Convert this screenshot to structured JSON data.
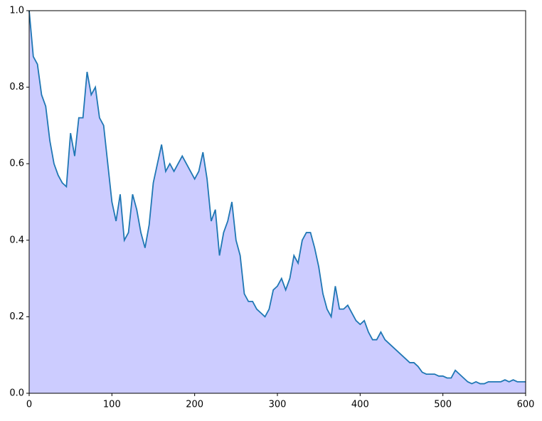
{
  "chart_data": {
    "type": "area",
    "x": [
      0,
      5,
      10,
      15,
      20,
      25,
      30,
      35,
      40,
      45,
      50,
      55,
      60,
      65,
      70,
      75,
      80,
      85,
      90,
      95,
      100,
      105,
      110,
      115,
      120,
      125,
      130,
      135,
      140,
      145,
      150,
      155,
      160,
      165,
      170,
      175,
      180,
      185,
      190,
      195,
      200,
      205,
      210,
      215,
      220,
      225,
      230,
      235,
      240,
      245,
      250,
      255,
      260,
      265,
      270,
      275,
      280,
      285,
      290,
      295,
      300,
      305,
      310,
      315,
      320,
      325,
      330,
      335,
      340,
      345,
      350,
      355,
      360,
      365,
      370,
      375,
      380,
      385,
      390,
      395,
      400,
      405,
      410,
      415,
      420,
      425,
      430,
      435,
      440,
      445,
      450,
      455,
      460,
      465,
      470,
      475,
      480,
      485,
      490,
      495,
      500,
      505,
      510,
      515,
      520,
      525,
      530,
      535,
      540,
      545,
      550,
      555,
      560,
      565,
      570,
      575,
      580,
      585,
      590,
      595,
      600
    ],
    "series": [
      {
        "color": "#1f77b4",
        "fill": "#ccccff",
        "values": [
          1.0,
          0.88,
          0.86,
          0.78,
          0.75,
          0.66,
          0.6,
          0.57,
          0.55,
          0.54,
          0.68,
          0.62,
          0.72,
          0.72,
          0.84,
          0.78,
          0.8,
          0.72,
          0.7,
          0.6,
          0.5,
          0.45,
          0.52,
          0.4,
          0.42,
          0.52,
          0.48,
          0.42,
          0.38,
          0.44,
          0.55,
          0.6,
          0.65,
          0.58,
          0.6,
          0.58,
          0.6,
          0.62,
          0.6,
          0.58,
          0.56,
          0.58,
          0.63,
          0.56,
          0.45,
          0.48,
          0.36,
          0.42,
          0.45,
          0.5,
          0.4,
          0.36,
          0.26,
          0.24,
          0.24,
          0.22,
          0.21,
          0.2,
          0.22,
          0.27,
          0.28,
          0.3,
          0.27,
          0.3,
          0.36,
          0.34,
          0.4,
          0.42,
          0.42,
          0.38,
          0.33,
          0.26,
          0.22,
          0.2,
          0.28,
          0.22,
          0.22,
          0.23,
          0.21,
          0.19,
          0.18,
          0.19,
          0.16,
          0.14,
          0.14,
          0.16,
          0.14,
          0.13,
          0.12,
          0.11,
          0.1,
          0.09,
          0.08,
          0.08,
          0.07,
          0.055,
          0.05,
          0.05,
          0.05,
          0.045,
          0.045,
          0.04,
          0.04,
          0.06,
          0.05,
          0.04,
          0.03,
          0.025,
          0.03,
          0.025,
          0.025,
          0.03,
          0.03,
          0.03,
          0.03,
          0.035,
          0.03,
          0.035,
          0.03,
          0.03,
          0.03
        ]
      }
    ],
    "xlim": [
      0,
      600
    ],
    "xticks": [
      0,
      100,
      200,
      300,
      400,
      500,
      600
    ],
    "ylim": [
      0,
      1
    ],
    "yticks": [
      {
        "value": 0,
        "label": "0.0"
      },
      0.2,
      0.4,
      0.6,
      0.8,
      {
        "value": 1,
        "label": "1.0"
      }
    ],
    "grid": false
  }
}
